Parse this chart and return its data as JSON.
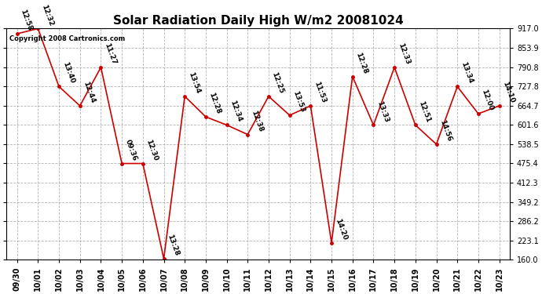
{
  "title": "Solar Radiation Daily High W/m2 20081024",
  "copyright": "Copyright 2008 Cartronics.com",
  "x_labels": [
    "09/30",
    "10/01",
    "10/02",
    "10/03",
    "10/04",
    "10/05",
    "10/06",
    "10/07",
    "10/08",
    "10/09",
    "10/10",
    "10/11",
    "10/12",
    "10/13",
    "10/14",
    "10/15",
    "10/16",
    "10/17",
    "10/18",
    "10/19",
    "10/20",
    "10/21",
    "10/22",
    "10/23"
  ],
  "y_values": [
    900,
    917,
    727,
    664,
    790,
    475,
    475,
    163,
    695,
    628,
    601,
    570,
    695,
    633,
    664,
    215,
    760,
    601,
    790,
    601,
    538,
    727,
    638,
    664
  ],
  "time_labels": [
    "12:58",
    "12:32",
    "13:40",
    "12:44",
    "11:27",
    "09:36",
    "12:30",
    "13:28",
    "13:54",
    "12:28",
    "12:34",
    "12:38",
    "12:25",
    "13:53",
    "11:53",
    "14:20",
    "12:28",
    "13:33",
    "12:33",
    "12:51",
    "14:56",
    "13:34",
    "12:00",
    "14:10"
  ],
  "ylim": [
    160,
    917
  ],
  "yticks": [
    160.0,
    223.1,
    286.2,
    349.2,
    412.3,
    475.4,
    538.5,
    601.6,
    664.7,
    727.8,
    790.8,
    853.9,
    917.0
  ],
  "line_color": "#cc0000",
  "marker_color": "#cc0000",
  "bg_color": "#ffffff",
  "grid_color": "#aaaaaa",
  "title_fontsize": 11,
  "tick_fontsize": 7,
  "annotation_fontsize": 6.5,
  "copyright_fontsize": 6
}
